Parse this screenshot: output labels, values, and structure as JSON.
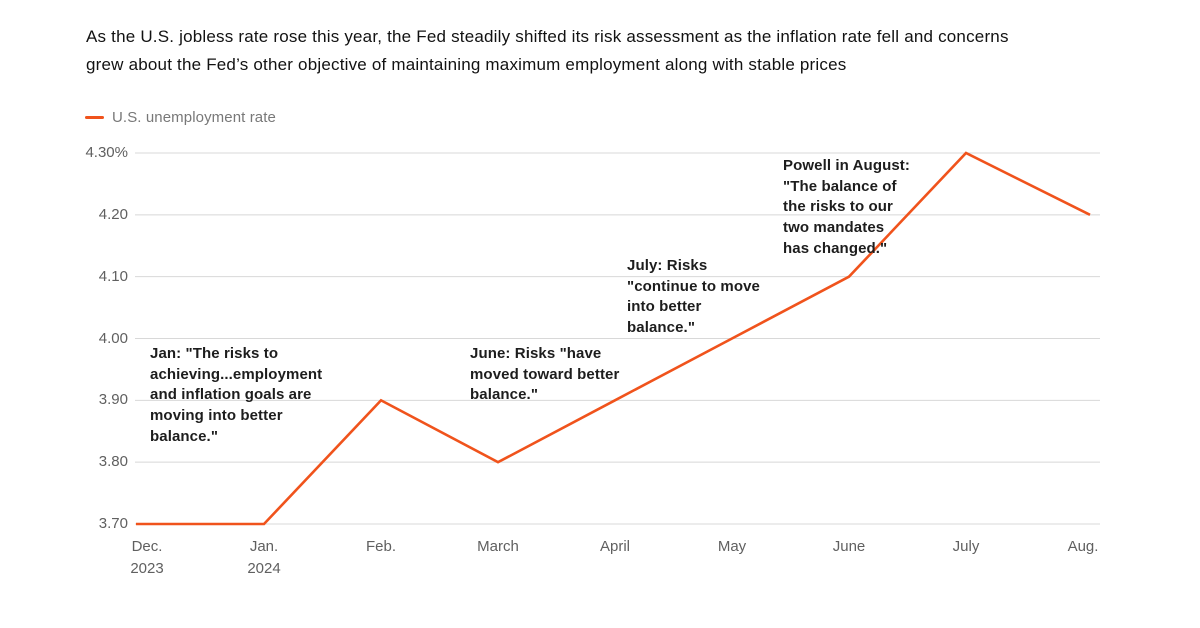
{
  "header": {
    "title": "As the U.S. jobless rate rose this year, the Fed steadily shifted its risk assessment as the inflation rate fell and concerns\ngrew about the Fed’s other objective of maintaining maximum employment along with stable prices"
  },
  "legend": {
    "label": "U.S. unemployment rate",
    "swatch_color": "#F0531C"
  },
  "chart_data": {
    "type": "line",
    "title": "U.S. unemployment rate",
    "categories": [
      "Dec. 2023",
      "Jan. 2024",
      "Feb.",
      "March",
      "April",
      "May",
      "June",
      "July",
      "Aug."
    ],
    "x_labels_display": [
      "Dec.\n2023",
      "Jan.\n2024",
      "Feb.",
      "March",
      "April",
      "May",
      "June",
      "July",
      "Aug."
    ],
    "values": [
      3.7,
      3.7,
      3.9,
      3.8,
      3.9,
      4.0,
      4.1,
      4.3,
      4.2
    ],
    "unit": "%",
    "xlabel": "",
    "ylabel": "",
    "ylim": [
      3.7,
      4.3
    ],
    "yticks": [
      "4.30%",
      "4.20",
      "4.10",
      "4.00",
      "3.90",
      "3.80",
      "3.70"
    ],
    "ytick_values": [
      4.3,
      4.2,
      4.1,
      4.0,
      3.9,
      3.8,
      3.7
    ],
    "grid": "horizontal",
    "line_color": "#F0531C",
    "gridline_color": "#d8d8d8",
    "axis_label_color": "#606060",
    "legend_position": "top-left"
  },
  "annotations": [
    {
      "id": "jan",
      "text": "Jan: \"The risks to\nachieving...employment\nand inflation goals are\nmoving into better\nbalance.\""
    },
    {
      "id": "june",
      "text": "June: Risks \"have\nmoved toward better\nbalance.\""
    },
    {
      "id": "july",
      "text": "July: Risks\n\"continue to move\ninto better\nbalance.\""
    },
    {
      "id": "powell",
      "text": "Powell in August:\n\"The balance of\nthe risks to our\ntwo mandates\nhas changed.\""
    }
  ]
}
